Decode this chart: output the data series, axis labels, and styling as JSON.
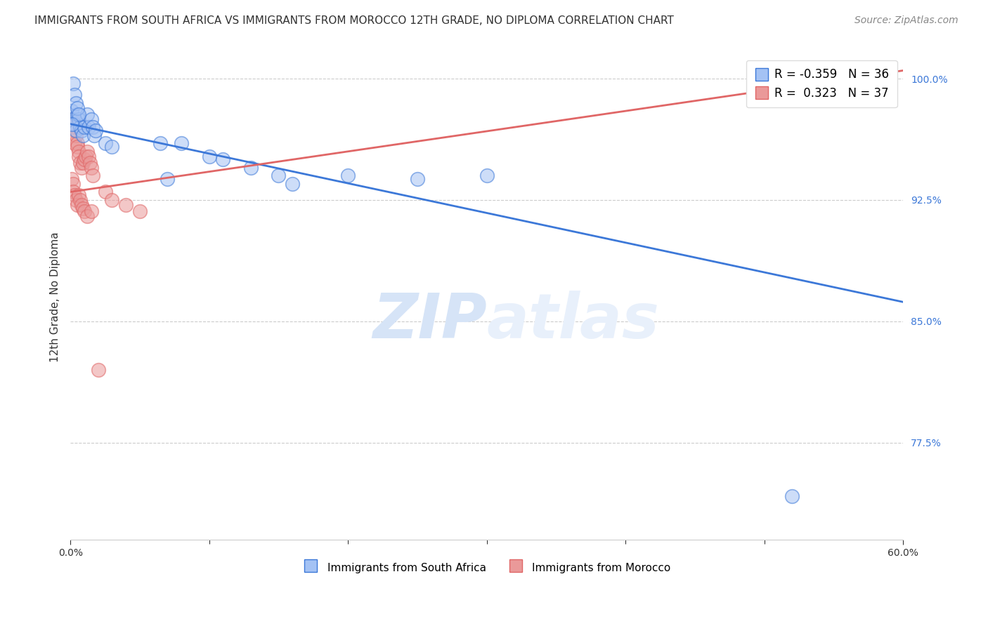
{
  "title": "IMMIGRANTS FROM SOUTH AFRICA VS IMMIGRANTS FROM MOROCCO 12TH GRADE, NO DIPLOMA CORRELATION CHART",
  "source": "Source: ZipAtlas.com",
  "ylabel_text": "12th Grade, No Diploma",
  "xmin": 0.0,
  "xmax": 0.6,
  "ymin": 0.715,
  "ymax": 1.015,
  "blue_R": -0.359,
  "blue_N": 36,
  "pink_R": 0.323,
  "pink_N": 37,
  "blue_label": "Immigrants from South Africa",
  "pink_label": "Immigrants from Morocco",
  "blue_color": "#a4c2f4",
  "pink_color": "#ea9999",
  "blue_line_color": "#3c78d8",
  "pink_line_color": "#e06666",
  "blue_line_x0": 0.0,
  "blue_line_y0": 0.972,
  "blue_line_x1": 0.6,
  "blue_line_y1": 0.862,
  "pink_line_x0": 0.0,
  "pink_line_y0": 0.93,
  "pink_line_x1": 0.6,
  "pink_line_y1": 1.005,
  "blue_scatter_x": [
    0.001,
    0.002,
    0.003,
    0.004,
    0.005,
    0.006,
    0.007,
    0.008,
    0.009,
    0.01,
    0.012,
    0.013,
    0.015,
    0.016,
    0.017,
    0.018,
    0.002,
    0.003,
    0.004,
    0.005,
    0.006,
    0.025,
    0.03,
    0.065,
    0.07,
    0.08,
    0.1,
    0.11,
    0.13,
    0.15,
    0.16,
    0.2,
    0.25,
    0.3,
    0.52,
    0.001
  ],
  "blue_scatter_y": [
    0.98,
    0.975,
    0.972,
    0.968,
    0.978,
    0.975,
    0.97,
    0.968,
    0.965,
    0.97,
    0.978,
    0.97,
    0.975,
    0.97,
    0.965,
    0.968,
    0.997,
    0.99,
    0.985,
    0.982,
    0.978,
    0.96,
    0.958,
    0.96,
    0.938,
    0.96,
    0.952,
    0.95,
    0.945,
    0.94,
    0.935,
    0.94,
    0.938,
    0.94,
    0.742,
    0.972
  ],
  "pink_scatter_x": [
    0.001,
    0.002,
    0.003,
    0.003,
    0.004,
    0.005,
    0.005,
    0.006,
    0.006,
    0.007,
    0.008,
    0.009,
    0.01,
    0.011,
    0.012,
    0.013,
    0.014,
    0.015,
    0.016,
    0.001,
    0.002,
    0.002,
    0.003,
    0.004,
    0.005,
    0.006,
    0.007,
    0.008,
    0.009,
    0.01,
    0.012,
    0.015,
    0.02,
    0.025,
    0.03,
    0.04,
    0.05
  ],
  "pink_scatter_y": [
    0.975,
    0.97,
    0.968,
    0.96,
    0.965,
    0.96,
    0.958,
    0.955,
    0.952,
    0.948,
    0.945,
    0.948,
    0.95,
    0.952,
    0.955,
    0.952,
    0.948,
    0.945,
    0.94,
    0.938,
    0.935,
    0.93,
    0.928,
    0.925,
    0.922,
    0.928,
    0.925,
    0.922,
    0.92,
    0.918,
    0.915,
    0.918,
    0.82,
    0.93,
    0.925,
    0.922,
    0.918
  ],
  "grid_yticks": [
    0.775,
    0.85,
    0.925,
    1.0
  ],
  "right_ytick_labels": [
    "77.5%",
    "85.0%",
    "92.5%",
    "100.0%"
  ],
  "watermark_zip": "ZIP",
  "watermark_atlas": "atlas",
  "watermark_color": "#d6e4f7",
  "title_fontsize": 11,
  "axis_label_fontsize": 11,
  "tick_fontsize": 10,
  "legend_fontsize": 12,
  "source_fontsize": 10
}
